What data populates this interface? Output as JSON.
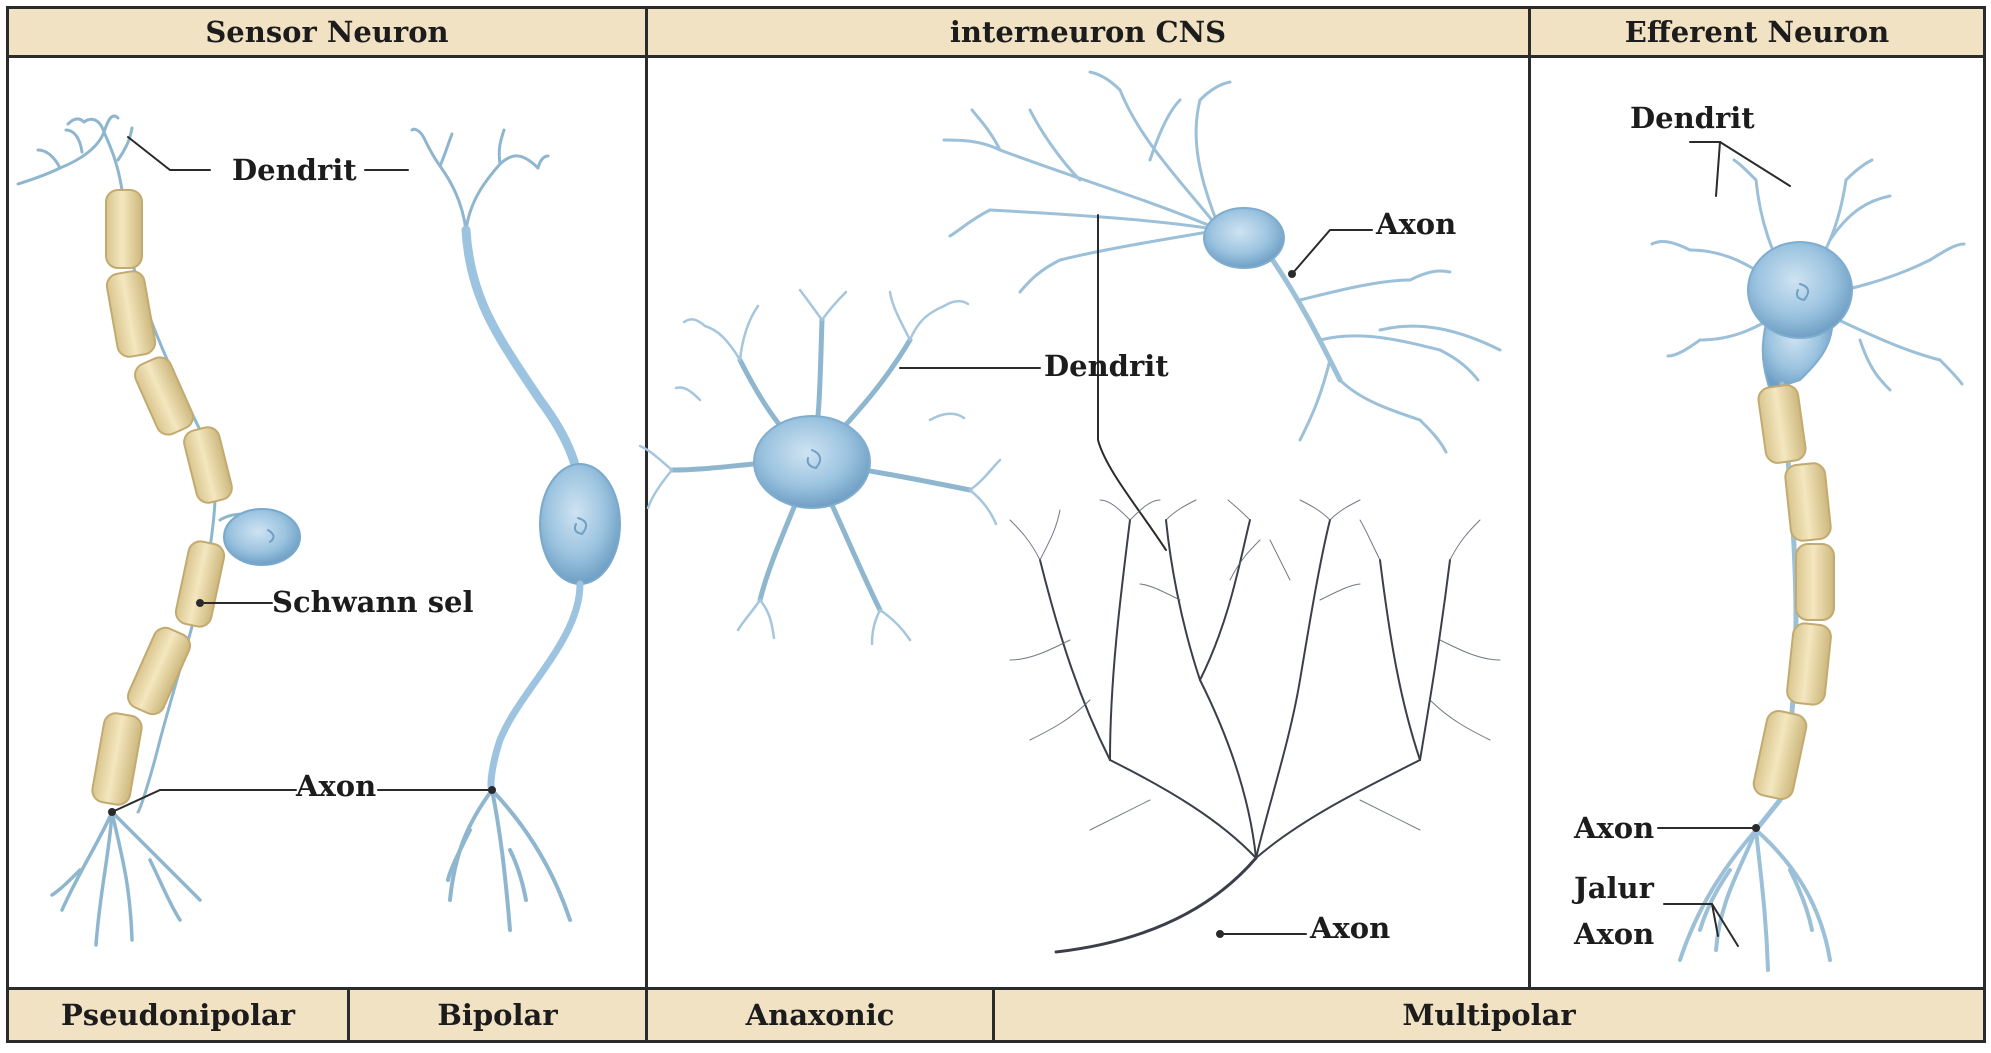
{
  "headers": {
    "sensor": "Sensor Neuron",
    "interneuron": "interneuron CNS",
    "efferent": "Efferent Neuron"
  },
  "footers": {
    "pseudonipolar": "Pseudonipolar",
    "bipolar": "Bipolar",
    "anaxonic": "Anaxonic",
    "multipolar": "Multipolar"
  },
  "labels": {
    "sensor_dendrit": "Dendrit",
    "sensor_schwann": "Schwann sel",
    "sensor_axon": "Axon",
    "inter_axon_top": "Axon",
    "inter_dendrit": "Dendrit",
    "inter_axon_bottom": "Axon",
    "eff_dendrit": "Dendrit",
    "eff_axon": "Axon",
    "eff_jalur": "Jalur",
    "eff_jalur_axon": "Axon"
  },
  "colors": {
    "header_fill": "#f2e2c4",
    "border": "#2b2b2b",
    "neuron_blue": "#9cc4e0",
    "neuron_blue_dark": "#6f9fc4",
    "myelin": "#ecdcaa",
    "myelin_edge": "#c7b27a",
    "purkinje": "#3a3f4a"
  }
}
